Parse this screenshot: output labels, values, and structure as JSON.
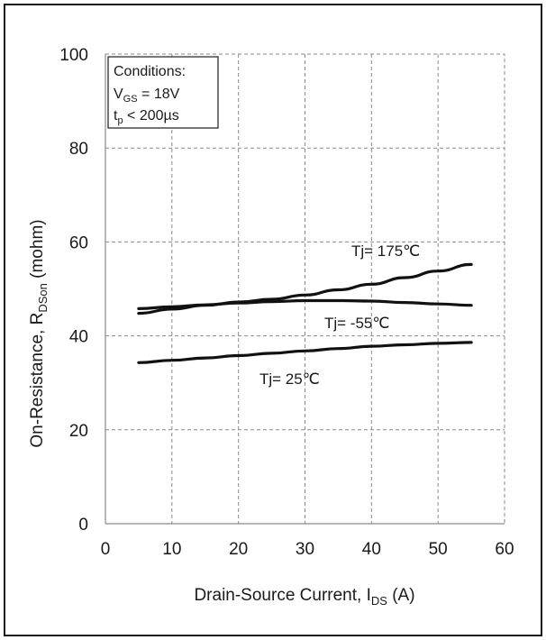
{
  "chart_data": {
    "type": "line",
    "xlabel": {
      "main": "Drain-Source Current, I",
      "sub": "DS",
      "unit": " (A)"
    },
    "ylabel": {
      "main": "On-Resistance, R",
      "sub": "DSon",
      "unit": " (mohm)"
    },
    "xlim": [
      0,
      60
    ],
    "ylim": [
      0,
      100
    ],
    "xticks": [
      "0",
      "10",
      "20",
      "30",
      "40",
      "50",
      "60"
    ],
    "yticks": [
      "0",
      "20",
      "40",
      "60",
      "80",
      "100"
    ],
    "grid": true,
    "conditions": {
      "title": "Conditions:",
      "vgs_main": "V",
      "vgs_sub": "GS",
      "vgs_rest": " = 18V",
      "tp_main": "t",
      "tp_sub": "p",
      "tp_rest": " < 200µs"
    },
    "series": [
      {
        "label": "Tj= 175℃",
        "x": [
          5,
          10,
          15,
          20,
          25,
          30,
          35,
          40,
          45,
          50,
          55
        ],
        "y": [
          44.8,
          45.7,
          46.5,
          47.2,
          47.8,
          48.7,
          49.8,
          51.0,
          52.4,
          53.8,
          55.2
        ]
      },
      {
        "label": "Tj= -55℃",
        "x": [
          5,
          10,
          15,
          20,
          25,
          30,
          35,
          40,
          45,
          50,
          55
        ],
        "y": [
          45.8,
          46.2,
          46.6,
          47.0,
          47.3,
          47.5,
          47.5,
          47.4,
          47.1,
          46.8,
          46.5
        ]
      },
      {
        "label": "Tj= 25℃",
        "x": [
          5,
          10,
          15,
          20,
          25,
          30,
          35,
          40,
          45,
          50,
          55
        ],
        "y": [
          34.3,
          34.8,
          35.3,
          35.8,
          36.3,
          36.8,
          37.3,
          37.8,
          38.1,
          38.4,
          38.6
        ]
      }
    ],
    "line_color": "#111111",
    "grid_color": "#8a8a8a"
  }
}
